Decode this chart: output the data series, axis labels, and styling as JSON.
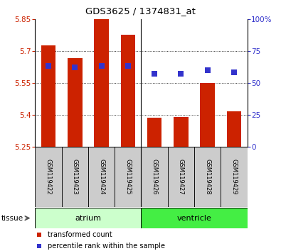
{
  "title": "GDS3625 / 1374831_at",
  "samples": [
    "GSM119422",
    "GSM119423",
    "GSM119424",
    "GSM119425",
    "GSM119426",
    "GSM119427",
    "GSM119428",
    "GSM119429"
  ],
  "bar_values": [
    5.725,
    5.665,
    5.855,
    5.775,
    5.385,
    5.39,
    5.55,
    5.415
  ],
  "percentile_values": [
    63,
    62,
    63,
    63,
    57,
    57,
    60,
    58
  ],
  "bar_baseline": 5.25,
  "ylim_left": [
    5.25,
    5.85
  ],
  "ylim_right": [
    0,
    100
  ],
  "yticks_left": [
    5.25,
    5.4,
    5.55,
    5.7,
    5.85
  ],
  "yticks_right": [
    0,
    25,
    50,
    75,
    100
  ],
  "ytick_labels_left": [
    "5.25",
    "5.4",
    "5.55",
    "5.7",
    "5.85"
  ],
  "ytick_labels_right": [
    "0",
    "25",
    "50",
    "75",
    "100%"
  ],
  "grid_lines": [
    5.4,
    5.55,
    5.7
  ],
  "bar_color": "#cc2200",
  "dot_color": "#3333cc",
  "tissue_groups": [
    {
      "label": "atrium",
      "start": 0,
      "end": 3,
      "color": "#ccffcc"
    },
    {
      "label": "ventricle",
      "start": 4,
      "end": 7,
      "color": "#44ee44"
    }
  ],
  "tissue_label": "tissue",
  "legend_items": [
    {
      "label": "transformed count",
      "color": "#cc2200"
    },
    {
      "label": "percentile rank within the sample",
      "color": "#3333cc"
    }
  ],
  "bar_width": 0.55,
  "dot_size": 28,
  "bg_color": "#ffffff",
  "sample_box_color": "#cccccc",
  "separator_x": 3.5,
  "xlim": [
    -0.5,
    7.5
  ]
}
